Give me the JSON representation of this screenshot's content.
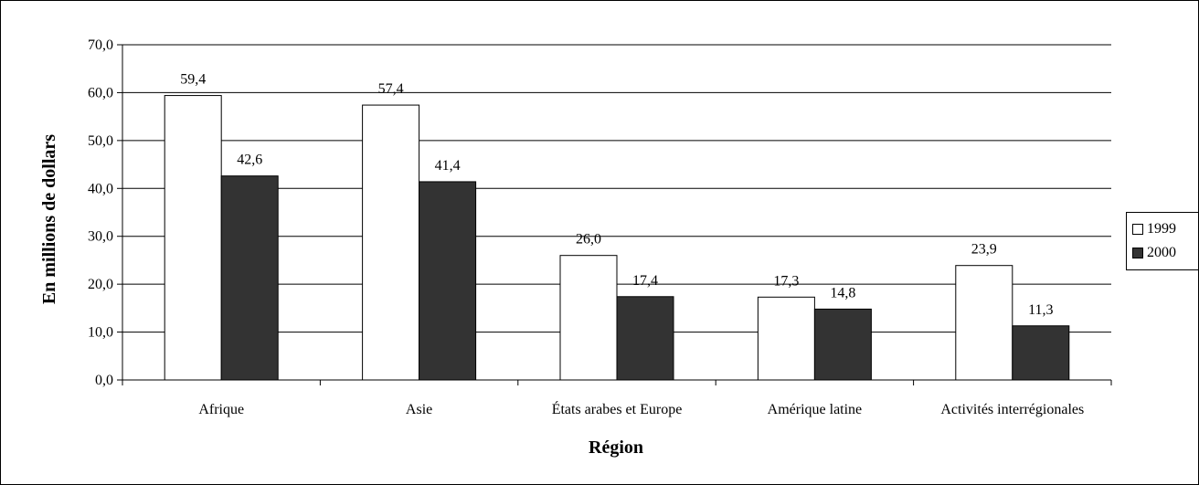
{
  "chart_data": {
    "type": "bar",
    "categories": [
      "Afrique",
      "Asie",
      "États arabes et Europe",
      "Amérique latine",
      "Activités interrégionales"
    ],
    "series": [
      {
        "name": "1999",
        "values": [
          59.4,
          57.4,
          26.0,
          17.3,
          23.9
        ],
        "labels": [
          "59,4",
          "57,4",
          "26,0",
          "17,3",
          "23,9"
        ],
        "color": "#ffffff"
      },
      {
        "name": "2000",
        "values": [
          42.6,
          41.4,
          17.4,
          14.8,
          11.3
        ],
        "labels": [
          "42,6",
          "41,4",
          "17,4",
          "14,8",
          "11,3"
        ],
        "color": "#333333"
      }
    ],
    "xlabel": "Région",
    "ylabel": "En millions de dollars",
    "ylim": [
      0,
      70
    ],
    "yticks": [
      0,
      10,
      20,
      30,
      40,
      50,
      60,
      70
    ],
    "ytick_labels": [
      "0,0",
      "10,0",
      "20,0",
      "30,0",
      "40,0",
      "50,0",
      "60,0",
      "70,0"
    ],
    "grid": true,
    "legend_position": "right"
  }
}
